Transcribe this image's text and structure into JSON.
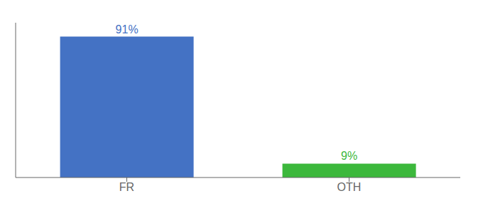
{
  "chart_data": {
    "type": "bar",
    "categories": [
      "FR",
      "OTH"
    ],
    "values": [
      91,
      9
    ],
    "value_labels": [
      "91%",
      "9%"
    ],
    "colors": [
      "#4472c4",
      "#3cb83c"
    ],
    "ylim": [
      0,
      100
    ],
    "data_labels": true,
    "tick_labels": "x",
    "grid": false
  }
}
